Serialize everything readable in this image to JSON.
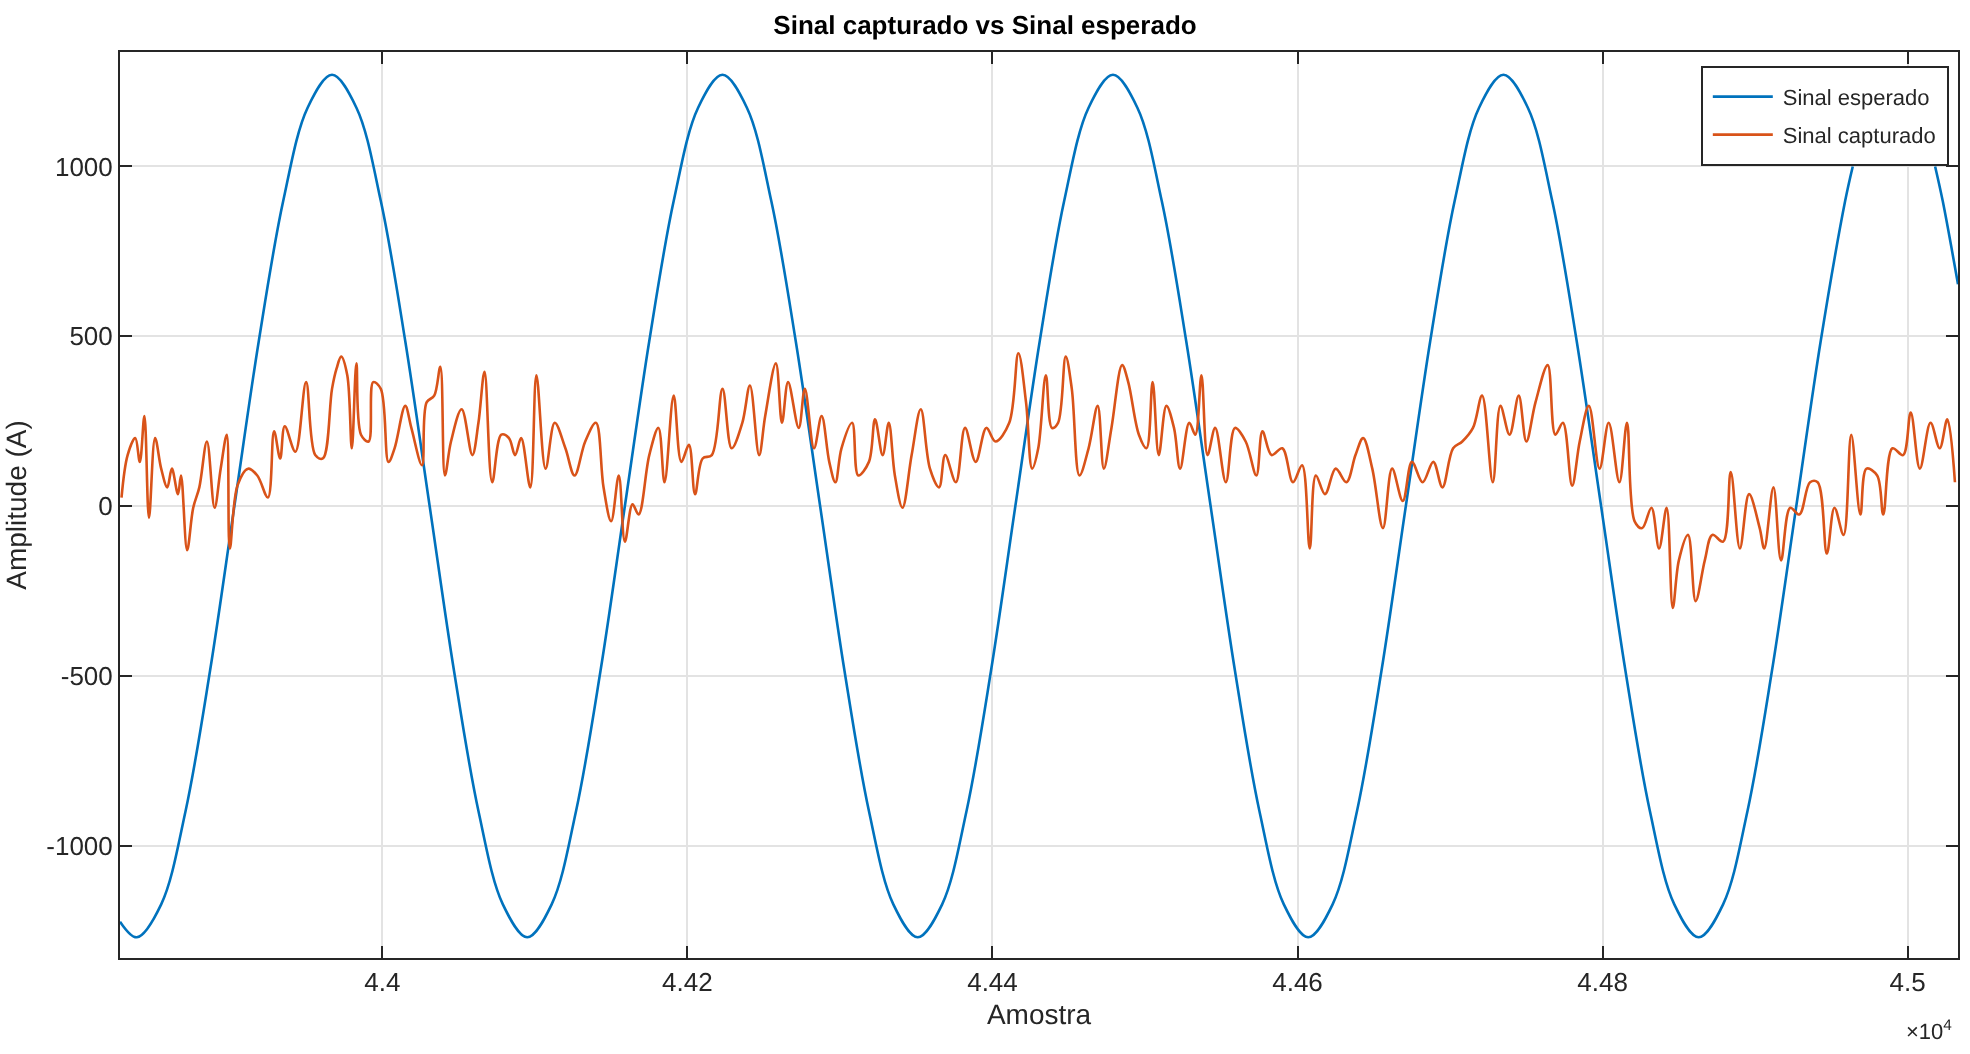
{
  "chart_data": {
    "type": "line",
    "title": "Sinal capturado vs Sinal esperado",
    "xlabel": "Amostra",
    "ylabel": "Amplitude (A)",
    "xlim": [
      4.3828,
      4.5033
    ],
    "ylim": [
      -1331,
      1337
    ],
    "xticks": [
      4.4,
      4.42,
      4.44,
      4.46,
      4.48,
      4.5
    ],
    "yticks": [
      -1000,
      -500,
      0,
      500,
      1000
    ],
    "grid": true,
    "legend": "top right",
    "marker": "none",
    "line_style": "solid",
    "annotations": [
      "×10$^{4}$"
    ],
    "series": [
      {
        "name": "Sinal esperado",
        "color": "#0072bd",
        "x": [
          4.3828,
          4.3839,
          4.3855,
          4.3871,
          4.3887,
          4.3903,
          4.3919,
          4.3935,
          4.3951,
          4.3967,
          4.3983,
          4.3999,
          4.4015,
          4.4031,
          4.4047,
          4.4063,
          4.4079,
          4.4095,
          4.4111,
          4.4127,
          4.4143,
          4.4159,
          4.4175,
          4.4191,
          4.4207,
          4.4223,
          4.4239,
          4.4255,
          4.4271,
          4.4287,
          4.4303,
          4.4319,
          4.4335,
          4.4351,
          4.4367,
          4.4383,
          4.4399,
          4.4415,
          4.4431,
          4.4447,
          4.4463,
          4.4479,
          4.4495,
          4.4511,
          4.4527,
          4.4543,
          4.4559,
          4.4575,
          4.4591,
          4.4607,
          4.4623,
          4.4639,
          4.4655,
          4.4671,
          4.4687,
          4.4703,
          4.4719,
          4.4735,
          4.4751,
          4.4767,
          4.4783,
          4.4799,
          4.4815,
          4.4831,
          4.4847,
          4.4863,
          4.4879,
          4.4895,
          4.4911,
          4.4927,
          4.4943,
          4.4959,
          4.4964,
          4.4975,
          4.4991,
          4.5007,
          4.5018,
          4.5023,
          4.5033
        ],
        "values": [
          -1224,
          -1270,
          -1173,
          -898,
          -486,
          0,
          486,
          898,
          1173,
          1270,
          1173,
          898,
          486,
          0,
          -486,
          -898,
          -1173,
          -1270,
          -1173,
          -898,
          -486,
          0,
          486,
          898,
          1173,
          1270,
          1173,
          898,
          486,
          0,
          -486,
          -898,
          -1173,
          -1270,
          -1173,
          -898,
          -486,
          0,
          486,
          898,
          1173,
          1270,
          1173,
          898,
          486,
          0,
          -486,
          -898,
          -1173,
          -1270,
          -1173,
          -898,
          -486,
          0,
          486,
          898,
          1173,
          1270,
          1173,
          898,
          486,
          0,
          -486,
          -898,
          -1173,
          -1270,
          -1173,
          -898,
          -486,
          0,
          486,
          898,
          1000,
          null,
          null,
          null,
          1000,
          898,
          653
        ]
      },
      {
        "name": "Sinal capturado",
        "color": "#d95319",
        "x": [
          4.3829,
          4.3833,
          4.3838,
          4.3841,
          4.3844,
          4.3847,
          4.3851,
          4.3855,
          4.3859,
          4.3862,
          4.3866,
          4.3868,
          4.3872,
          4.3876,
          4.388,
          4.3885,
          4.389,
          4.3894,
          4.3898,
          4.39,
          4.3905,
          4.3912,
          4.3918,
          4.3925,
          4.3929,
          4.3933,
          4.3936,
          4.3943,
          4.395,
          4.3956,
          4.3961,
          4.3967,
          4.397,
          4.3973,
          4.3977,
          4.398,
          4.3983,
          4.3986,
          4.3991,
          4.3994,
          4.3999,
          4.4004,
          4.4008,
          4.4015,
          4.4019,
          4.4026,
          4.4029,
          4.4034,
          4.4038,
          4.4041,
          4.4045,
          4.4052,
          4.4059,
          4.4063,
          4.4067,
          4.4072,
          4.4078,
          4.4083,
          4.4087,
          4.4091,
          4.4097,
          4.4101,
          4.4107,
          4.4113,
          4.412,
          4.4126,
          4.4133,
          4.414,
          4.4145,
          4.415,
          4.4155,
          4.4159,
          4.4164,
          4.4168,
          4.4175,
          4.4181,
          4.4185,
          4.4191,
          4.4196,
          4.4201,
          4.4205,
          4.421,
          4.4216,
          4.4223,
          4.4229,
          4.4236,
          4.4241,
          4.4247,
          4.4251,
          4.4258,
          4.4262,
          4.4266,
          4.4273,
          4.4277,
          4.4283,
          4.4288,
          4.4293,
          4.4297,
          4.4301,
          4.4308,
          4.4312,
          4.4319,
          4.4323,
          4.4328,
          4.4332,
          4.4336,
          4.4341,
          4.4347,
          4.4353,
          4.4359,
          4.4365,
          4.4369,
          4.4376,
          4.4382,
          4.4389,
          4.4396,
          4.4402,
          4.4411,
          4.4417,
          4.4422,
          4.4426,
          4.443,
          4.4435,
          4.4439,
          4.4443,
          4.4448,
          4.4452,
          4.4457,
          4.4463,
          4.4469,
          4.4473,
          4.4478,
          4.4485,
          4.4489,
          4.4496,
          4.4501,
          4.4505,
          4.4509,
          4.4514,
          4.4519,
          4.4523,
          4.4529,
          4.4533,
          4.4537,
          4.4541,
          4.4546,
          4.4553,
          4.4559,
          4.4566,
          4.4573,
          4.4577,
          4.4583,
          4.459,
          4.4597,
          4.4603,
          4.4608,
          4.4612,
          4.4618,
          4.4625,
          4.4632,
          4.4638,
          4.4643,
          4.4649,
          4.4656,
          4.4662,
          4.4669,
          4.4675,
          4.4682,
          4.4689,
          4.4695,
          4.4702,
          4.4708,
          4.4715,
          4.4721,
          4.4728,
          4.4733,
          4.4739,
          4.4745,
          4.475,
          4.4756,
          4.4764,
          4.4769,
          4.4774,
          4.478,
          4.4785,
          4.4791,
          4.4798,
          4.4804,
          4.4811,
          4.4816,
          4.4821,
          4.4826,
          4.4832,
          4.4837,
          4.4842,
          4.4846,
          4.485,
          4.4856,
          4.4861,
          4.4867,
          4.4872,
          4.4879,
          4.4884,
          4.489,
          4.4896,
          4.4903,
          4.4906,
          4.4912,
          4.4917,
          4.4923,
          4.4929,
          4.4936,
          4.4941,
          4.4947,
          4.4952,
          4.4958,
          4.4963,
          4.4969,
          4.4973,
          4.498,
          4.4984,
          4.499,
          4.4997,
          4.5002,
          4.5008,
          4.5015,
          4.5021,
          4.5026,
          4.5031
        ],
        "values": [
          25,
          150,
          200,
          130,
          265,
          -35,
          200,
          110,
          55,
          110,
          35,
          90,
          -130,
          -5,
          55,
          190,
          -5,
          110,
          210,
          -125,
          60,
          110,
          90,
          25,
          220,
          140,
          235,
          160,
          365,
          150,
          140,
          345,
          405,
          440,
          385,
          170,
          420,
          210,
          190,
          365,
          345,
          130,
          170,
          295,
          230,
          120,
          305,
          325,
          410,
          90,
          190,
          285,
          150,
          245,
          395,
          70,
          210,
          200,
          150,
          200,
          55,
          385,
          110,
          245,
          170,
          90,
          190,
          245,
          55,
          -45,
          90,
          -105,
          5,
          -25,
          150,
          230,
          70,
          325,
          130,
          180,
          35,
          140,
          150,
          345,
          170,
          245,
          355,
          150,
          265,
          420,
          245,
          365,
          230,
          345,
          170,
          265,
          130,
          70,
          170,
          245,
          90,
          130,
          255,
          150,
          245,
          90,
          -5,
          150,
          285,
          110,
          55,
          150,
          70,
          230,
          130,
          230,
          190,
          245,
          450,
          305,
          110,
          170,
          385,
          230,
          245,
          440,
          345,
          90,
          170,
          295,
          110,
          230,
          415,
          365,
          210,
          170,
          365,
          150,
          295,
          230,
          110,
          245,
          210,
          385,
          150,
          230,
          70,
          230,
          190,
          90,
          220,
          150,
          170,
          70,
          120,
          -125,
          90,
          35,
          110,
          70,
          150,
          200,
          110,
          -65,
          110,
          15,
          130,
          70,
          130,
          55,
          170,
          190,
          230,
          325,
          70,
          295,
          210,
          325,
          190,
          305,
          415,
          210,
          245,
          60,
          190,
          295,
          110,
          245,
          70,
          245,
          -45,
          -65,
          -5,
          -125,
          -5,
          -300,
          -160,
          -85,
          -280,
          -160,
          -85,
          -105,
          100,
          -125,
          35,
          -65,
          -125,
          55,
          -160,
          -5,
          -25,
          70,
          70,
          -140,
          -5,
          -85,
          210,
          -25,
          110,
          90,
          -25,
          170,
          150,
          275,
          110,
          245,
          170,
          255,
          70
        ]
      }
    ]
  }
}
